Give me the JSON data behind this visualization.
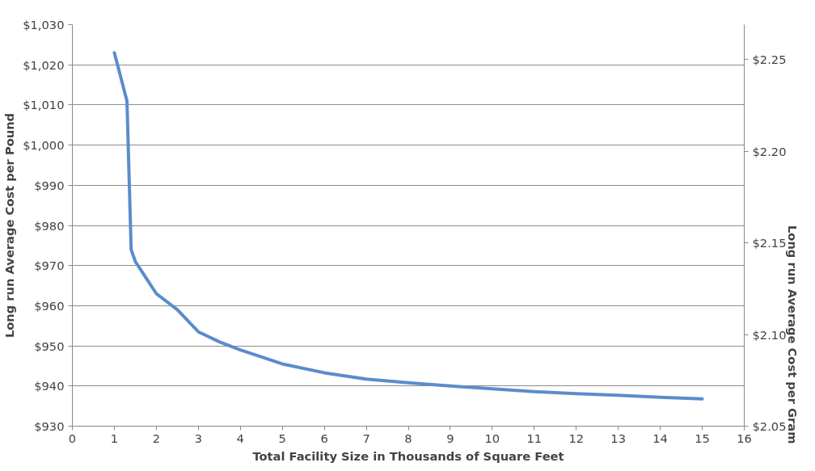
{
  "chart_data": {
    "type": "line",
    "xlabel": "Total Facility Size in Thousands of Square Feet",
    "ylabel": "Long run Average Cost per Pound",
    "y2label": "Long run Average Cost per Gram",
    "x": [
      1,
      1.2,
      1.3,
      1.4,
      1.5,
      1.75,
      2,
      2.5,
      3,
      3.5,
      4,
      5,
      6,
      7,
      8,
      9,
      10,
      11,
      12,
      13,
      14,
      15
    ],
    "series": [
      {
        "color": "#5b8ccc",
        "values": [
          1023,
          1015,
          1011,
          974,
          971,
          967,
          963,
          959,
          953.5,
          951,
          949,
          945.5,
          943.3,
          941.7,
          940.8,
          940,
          939.3,
          938.6,
          938.1,
          937.7,
          937.2,
          936.8
        ]
      }
    ],
    "xlim": [
      0,
      16
    ],
    "xticks": [
      0,
      1,
      2,
      3,
      4,
      5,
      6,
      7,
      8,
      9,
      10,
      11,
      12,
      13,
      14,
      15,
      16
    ],
    "ylim": [
      930,
      1030
    ],
    "yticks": [
      {
        "value": 930,
        "label": "$930"
      },
      {
        "value": 940,
        "label": "$940"
      },
      {
        "value": 950,
        "label": "$950"
      },
      {
        "value": 960,
        "label": "$960"
      },
      {
        "value": 970,
        "label": "$970"
      },
      {
        "value": 980,
        "label": "$980"
      },
      {
        "value": 990,
        "label": "$990"
      },
      {
        "value": 1000,
        "label": "$1,000"
      },
      {
        "value": 1010,
        "label": "$1,010"
      },
      {
        "value": 1020,
        "label": "$1,020"
      },
      {
        "value": 1030,
        "label": "$1,030"
      }
    ],
    "y2lim": [
      2.05,
      2.269
    ],
    "y2ticks": [
      {
        "value": 2.05,
        "label": "$2.05"
      },
      {
        "value": 2.1,
        "label": "$2.10"
      },
      {
        "value": 2.15,
        "label": "$2.15"
      },
      {
        "value": 2.2,
        "label": "$2.20"
      },
      {
        "value": 2.25,
        "label": "$2.25"
      }
    ],
    "grid": "y"
  }
}
